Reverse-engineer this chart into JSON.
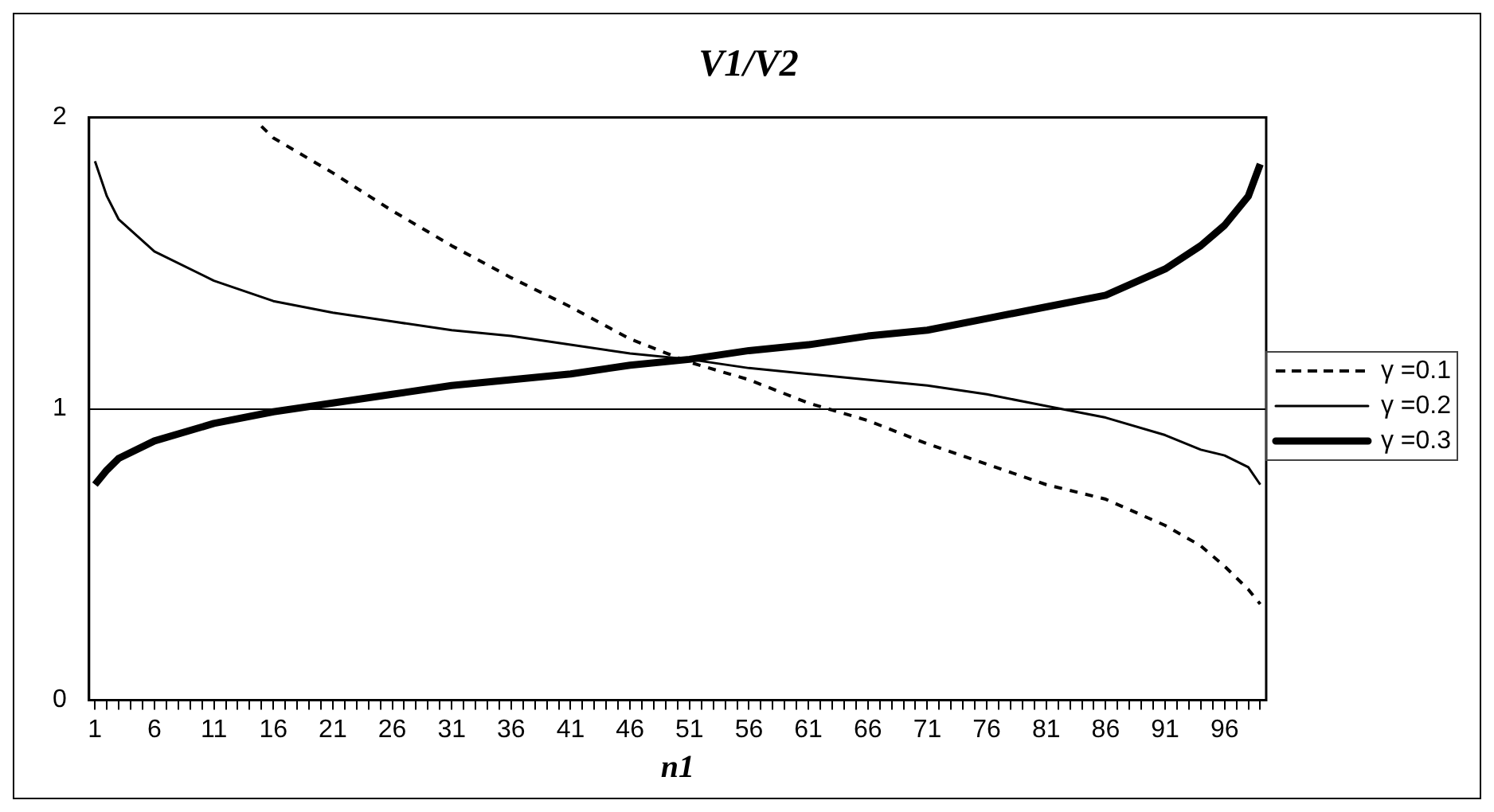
{
  "chart_data": {
    "type": "line",
    "title": "V1/V2",
    "xlabel": "n1",
    "xlim": [
      0.5,
      99.5
    ],
    "xticks": [
      1,
      {
        "value": 2,
        "label": null
      },
      {
        "value": 3,
        "label": null
      },
      {
        "value": 4,
        "label": null
      },
      {
        "value": 5,
        "label": null
      },
      6,
      {
        "value": 7,
        "label": null
      },
      {
        "value": 8,
        "label": null
      },
      {
        "value": 9,
        "label": null
      },
      {
        "value": 10,
        "label": null
      },
      11,
      {
        "value": 12,
        "label": null
      },
      {
        "value": 13,
        "label": null
      },
      {
        "value": 14,
        "label": null
      },
      {
        "value": 15,
        "label": null
      },
      16,
      {
        "value": 17,
        "label": null
      },
      {
        "value": 18,
        "label": null
      },
      {
        "value": 19,
        "label": null
      },
      {
        "value": 20,
        "label": null
      },
      21,
      {
        "value": 22,
        "label": null
      },
      {
        "value": 23,
        "label": null
      },
      {
        "value": 24,
        "label": null
      },
      {
        "value": 25,
        "label": null
      },
      26,
      {
        "value": 27,
        "label": null
      },
      {
        "value": 28,
        "label": null
      },
      {
        "value": 29,
        "label": null
      },
      {
        "value": 30,
        "label": null
      },
      31,
      {
        "value": 32,
        "label": null
      },
      {
        "value": 33,
        "label": null
      },
      {
        "value": 34,
        "label": null
      },
      {
        "value": 35,
        "label": null
      },
      36,
      {
        "value": 37,
        "label": null
      },
      {
        "value": 38,
        "label": null
      },
      {
        "value": 39,
        "label": null
      },
      {
        "value": 40,
        "label": null
      },
      41,
      {
        "value": 42,
        "label": null
      },
      {
        "value": 43,
        "label": null
      },
      {
        "value": 44,
        "label": null
      },
      {
        "value": 45,
        "label": null
      },
      46,
      {
        "value": 47,
        "label": null
      },
      {
        "value": 48,
        "label": null
      },
      {
        "value": 49,
        "label": null
      },
      {
        "value": 50,
        "label": null
      },
      51,
      {
        "value": 52,
        "label": null
      },
      {
        "value": 53,
        "label": null
      },
      {
        "value": 54,
        "label": null
      },
      {
        "value": 55,
        "label": null
      },
      56,
      {
        "value": 57,
        "label": null
      },
      {
        "value": 58,
        "label": null
      },
      {
        "value": 59,
        "label": null
      },
      {
        "value": 60,
        "label": null
      },
      61,
      {
        "value": 62,
        "label": null
      },
      {
        "value": 63,
        "label": null
      },
      {
        "value": 64,
        "label": null
      },
      {
        "value": 65,
        "label": null
      },
      66,
      {
        "value": 67,
        "label": null
      },
      {
        "value": 68,
        "label": null
      },
      {
        "value": 69,
        "label": null
      },
      {
        "value": 70,
        "label": null
      },
      71,
      {
        "value": 72,
        "label": null
      },
      {
        "value": 73,
        "label": null
      },
      {
        "value": 74,
        "label": null
      },
      {
        "value": 75,
        "label": null
      },
      76,
      {
        "value": 77,
        "label": null
      },
      {
        "value": 78,
        "label": null
      },
      {
        "value": 79,
        "label": null
      },
      {
        "value": 80,
        "label": null
      },
      81,
      {
        "value": 82,
        "label": null
      },
      {
        "value": 83,
        "label": null
      },
      {
        "value": 84,
        "label": null
      },
      {
        "value": 85,
        "label": null
      },
      86,
      {
        "value": 87,
        "label": null
      },
      {
        "value": 88,
        "label": null
      },
      {
        "value": 89,
        "label": null
      },
      {
        "value": 90,
        "label": null
      },
      91,
      {
        "value": 92,
        "label": null
      },
      {
        "value": 93,
        "label": null
      },
      {
        "value": 94,
        "label": null
      },
      {
        "value": 95,
        "label": null
      },
      96,
      {
        "value": 97,
        "label": null
      },
      {
        "value": 98,
        "label": null
      },
      {
        "value": 99,
        "label": null
      }
    ],
    "ylim": [
      0,
      2
    ],
    "yticks": [
      0,
      1,
      2
    ],
    "grid": "y",
    "legend": "right",
    "marker": "none",
    "series": [
      {
        "name": "γ =0.1",
        "color": "#000000",
        "line_style": "dashed",
        "x": [
          15,
          16,
          21,
          26,
          31,
          36,
          41,
          46,
          51,
          56,
          61,
          66,
          71,
          76,
          81,
          86,
          91,
          94,
          96,
          98,
          99
        ],
        "values": [
          1.97,
          1.93,
          1.81,
          1.68,
          1.56,
          1.45,
          1.35,
          1.24,
          1.16,
          1.1,
          1.02,
          0.96,
          0.88,
          0.81,
          0.74,
          0.69,
          0.6,
          0.53,
          0.46,
          0.38,
          0.33
        ]
      },
      {
        "name": "γ =0.2",
        "color": "#000000",
        "line_style": "solid",
        "x": [
          1,
          2,
          3,
          6,
          11,
          16,
          21,
          26,
          31,
          36,
          41,
          46,
          51,
          56,
          61,
          66,
          71,
          76,
          81,
          86,
          91,
          94,
          96,
          98,
          99
        ],
        "values": [
          1.85,
          1.73,
          1.65,
          1.54,
          1.44,
          1.37,
          1.33,
          1.3,
          1.27,
          1.25,
          1.22,
          1.19,
          1.17,
          1.14,
          1.12,
          1.1,
          1.08,
          1.05,
          1.01,
          0.97,
          0.91,
          0.86,
          0.84,
          0.8,
          0.74
        ]
      },
      {
        "name": "γ =0.3",
        "color": "#000000",
        "line_style": "solid",
        "x": [
          1,
          2,
          3,
          6,
          11,
          16,
          21,
          26,
          31,
          36,
          41,
          46,
          51,
          56,
          61,
          66,
          71,
          76,
          81,
          86,
          91,
          94,
          96,
          98,
          99
        ],
        "values": [
          0.74,
          0.79,
          0.83,
          0.89,
          0.95,
          0.99,
          1.02,
          1.05,
          1.08,
          1.1,
          1.12,
          1.15,
          1.17,
          1.2,
          1.22,
          1.25,
          1.27,
          1.31,
          1.35,
          1.39,
          1.48,
          1.56,
          1.63,
          1.73,
          1.84
        ]
      }
    ]
  }
}
